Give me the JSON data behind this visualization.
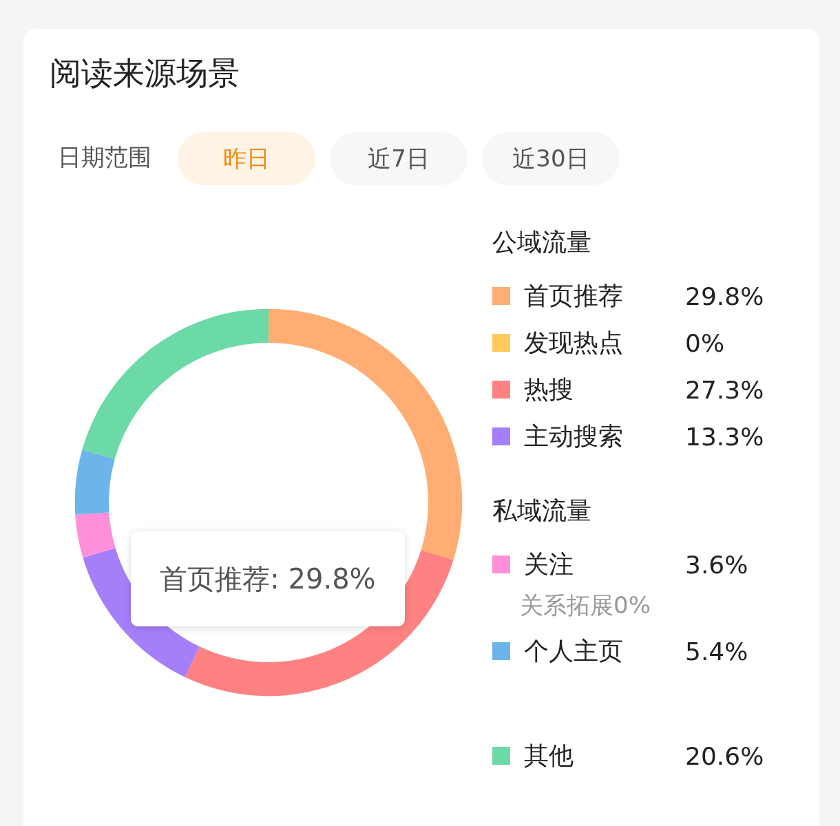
{
  "chart_data": {
    "type": "donut",
    "title": "阅读来源场景",
    "categories": [
      "首页推荐",
      "发现热点",
      "热搜",
      "主动搜索",
      "关注",
      "关系拓展",
      "个人主页",
      "其他"
    ],
    "values": [
      29.8,
      0,
      27.3,
      13.3,
      3.6,
      0,
      5.4,
      20.6
    ],
    "value_labels": [
      "29.8%",
      "0%",
      "27.3%",
      "13.3%",
      "3.6%",
      "0%",
      "5.4%",
      "20.6%"
    ],
    "colors": [
      "#ffad72",
      "#ffc95c",
      "#ff8282",
      "#a57ffa",
      "#ff8fd9",
      null,
      "#6cb5e9",
      "#6cdaa6"
    ],
    "legend": "right",
    "annotations": [
      "日期范围",
      "昨日",
      "近7日",
      "近30日",
      "公域流量",
      "私域流量",
      "首页推荐: 29.8%"
    ]
  }
}
